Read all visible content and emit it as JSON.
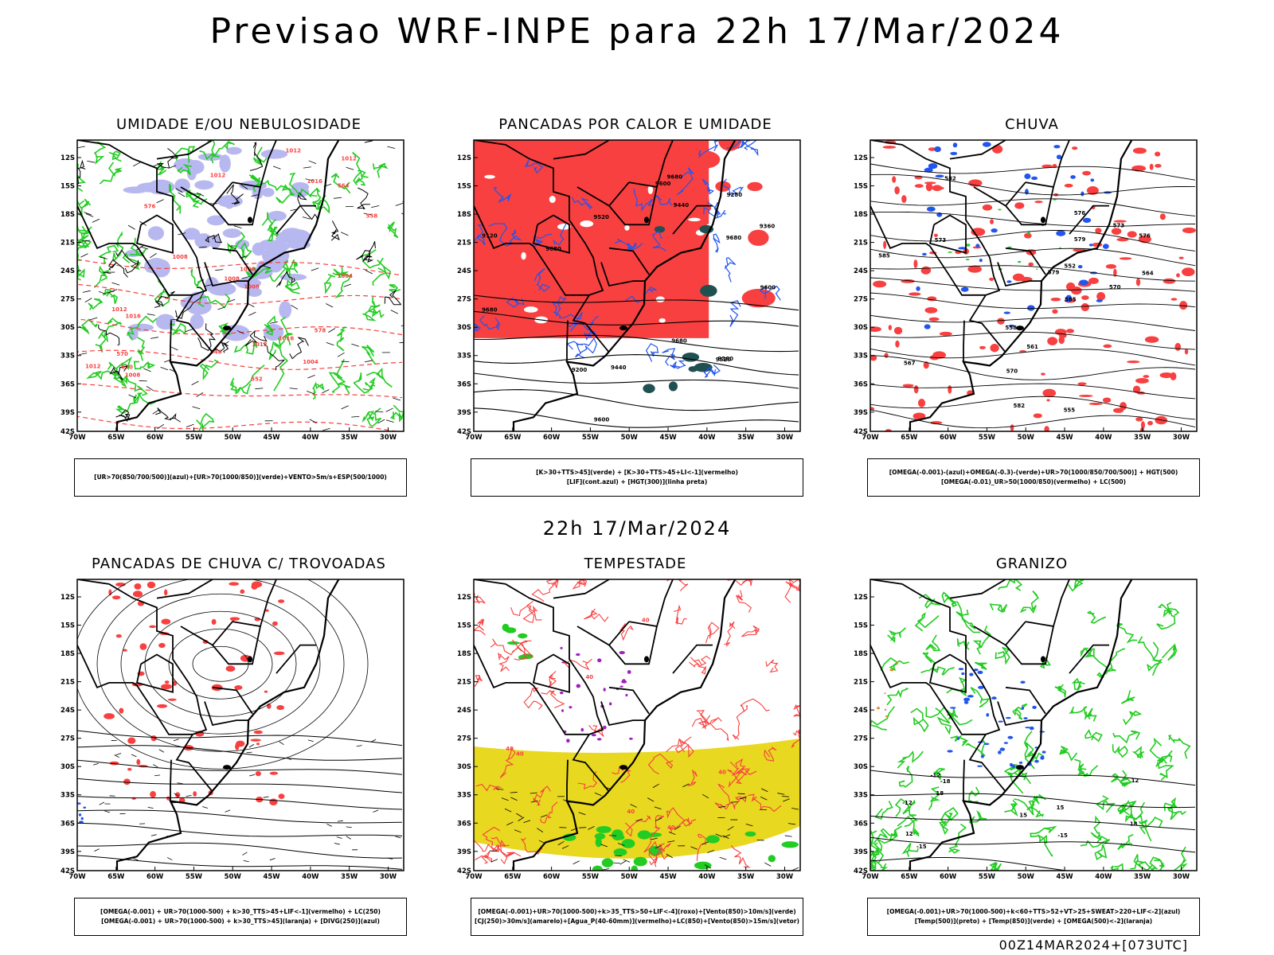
{
  "title": "Previsao WRF-INPE  para 22h 17/Mar/2024",
  "mid_date": "22h 17/Mar/2024",
  "footer_code": "00Z14MAR2024+[073UTC]",
  "axes": {
    "lat_labels": [
      "12S",
      "15S",
      "18S",
      "21S",
      "24S",
      "27S",
      "30S",
      "33S",
      "36S",
      "39S",
      "42S"
    ],
    "lon_labels": [
      "70W",
      "65W",
      "60W",
      "55W",
      "50W",
      "45W",
      "40W",
      "35W",
      "30W"
    ]
  },
  "colors": {
    "red": "#f84040",
    "green": "#22cc22",
    "blue": "#2255ee",
    "lavender": "#b8b8f0",
    "yellow": "#e8d820",
    "teal": "#205050",
    "purple": "#a020c0",
    "orange": "#f08020"
  },
  "panels": [
    {
      "title": "UMIDADE E/OU NEBULOSIDADE",
      "legend": [
        "[UR>70(850/700/500)](azul)+[UR>70(1000/850)](verde)+VENTO>5m/s+ESP(500/1000)"
      ],
      "labels": [
        "1012",
        "1012",
        "1008",
        "1016",
        "1012",
        "1016",
        "1008",
        "1004",
        "1004",
        "1008",
        "1012",
        "1012",
        "1008",
        "1008",
        "1016",
        "1012",
        "576",
        "578",
        "570",
        "564",
        "558",
        "552",
        "546",
        "570"
      ]
    },
    {
      "title": "PANCADAS POR CALOR E UMIDADE",
      "legend": [
        "[K>30+TTS>45](verde) + [K>30+TTS>45+LI<-1](vermelho)",
        "[LIF](cont.azul) + [HGT(300)](linha preta)"
      ],
      "labels": [
        "9680",
        "9680",
        "9680",
        "9680",
        "9680",
        "9600",
        "9600",
        "9520",
        "9440",
        "9360",
        "9280",
        "9200",
        "9120",
        "9600",
        "9520",
        "9440",
        "9360"
      ]
    },
    {
      "title": "CHUVA",
      "legend": [
        "[OMEGA(-0.001)-(azul)+OMEGA(-0.3)-(verde)+UR>70(1000/850/700/500)] + HGT(500)",
        "[OMEGA(-0.01)_UR>50(1000/850)(vermelho) + LC(500)"
      ],
      "labels": [
        "585",
        "582",
        "579",
        "576",
        "573",
        "570",
        "567",
        "564",
        "561",
        "558",
        "555",
        "552",
        "585",
        "582",
        "579",
        "576",
        "573",
        "570"
      ]
    },
    {
      "title": "PANCADAS DE CHUVA C/ TROVOADAS",
      "legend": [
        "[OMEGA(-0.001) + UR>70(1000-500) + k>30_TTS>45+LIF<-1](vermelho) + LC(250)",
        "[OMEGA(-0.001) + UR>70(1000-500) + k>30_TTS>45](laranja) + [DIVG(250)](azul)"
      ],
      "labels": []
    },
    {
      "title": "TEMPESTADE",
      "legend": [
        "[OMEGA(-0.001)+UR>70(1000-500)+k>35_TTS>50+LIF<-4](roxo)+[Vento(850)>10m/s](verde)",
        "[CJ(250)>30m/s](amarelo)+[Agua_P(40-60mm)](vermelho)+LC(850)+[Vento(850)>15m/s](vetor)"
      ],
      "labels": [
        "40",
        "40",
        "40",
        "40",
        "40",
        "40",
        "40"
      ]
    },
    {
      "title": "GRANIZO",
      "legend": [
        "[OMEGA(-0.001)+UR>70(1000-500)+k<60+TTS>52+VT>25+SWEAT>220+LIF<-2](azul)",
        "[Temp(500)](preto) + [Temp(850)](verde) + [OMEGA(500)<-2](laranja)"
      ],
      "labels": [
        "-12",
        "-12",
        "-15",
        "-15",
        "-18",
        "12",
        "12",
        "15",
        "15",
        "18",
        "18"
      ]
    }
  ]
}
